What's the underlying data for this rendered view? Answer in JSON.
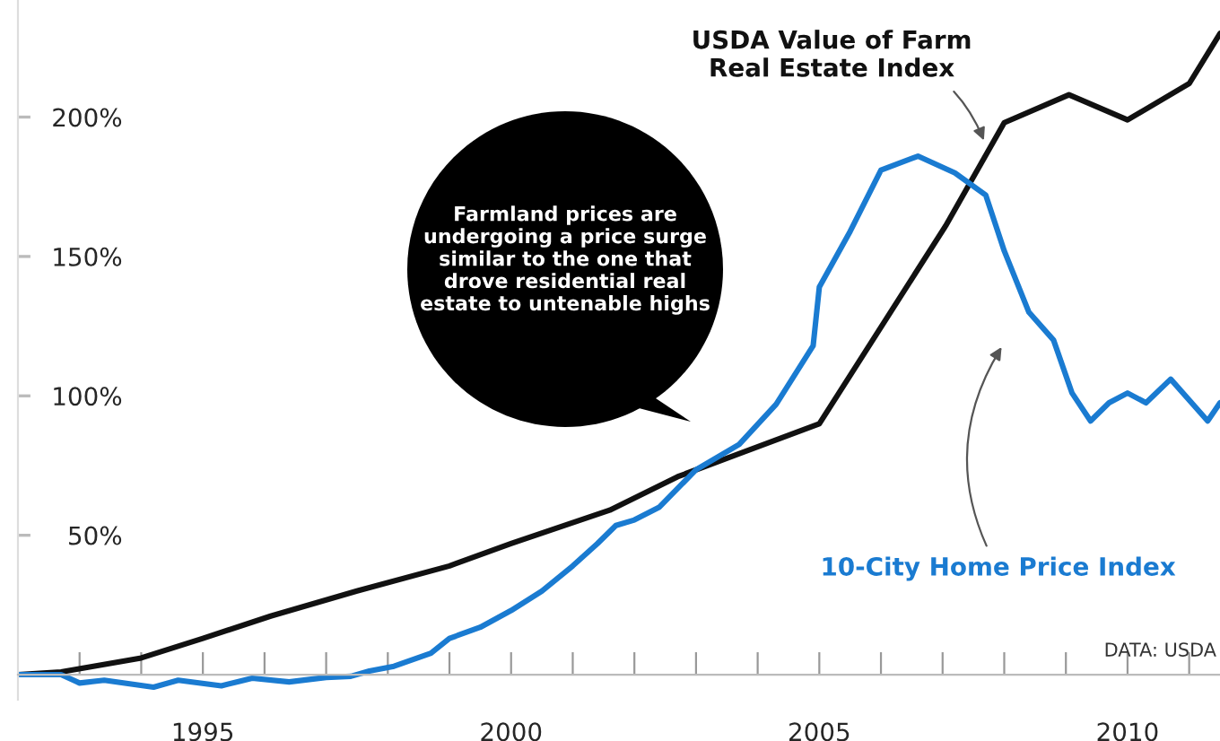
{
  "chart_data": {
    "type": "line",
    "xlim": [
      1992.0,
      2011.5
    ],
    "xticks": [
      {
        "value": 1993,
        "label": null
      },
      {
        "value": 1994,
        "label": null
      },
      1995,
      {
        "value": 1996,
        "label": null
      },
      {
        "value": 1997,
        "label": null
      },
      {
        "value": 1998,
        "label": null
      },
      {
        "value": 1999,
        "label": null
      },
      2000,
      {
        "value": 2001,
        "label": null
      },
      {
        "value": 2002,
        "label": null
      },
      {
        "value": 2003,
        "label": null
      },
      {
        "value": 2004,
        "label": null
      },
      2005,
      {
        "value": 2006,
        "label": null
      },
      {
        "value": 2007,
        "label": null
      },
      {
        "value": 2008,
        "label": null
      },
      {
        "value": 2009,
        "label": null
      },
      2010,
      {
        "value": 2011,
        "label": null
      }
    ],
    "ylim": [
      -9,
      242
    ],
    "yticks": [
      {
        "value": 50,
        "label": "50%"
      },
      {
        "value": 100,
        "label": "100%"
      },
      {
        "value": 150,
        "label": "150%"
      },
      {
        "value": 200,
        "label": "200%"
      }
    ],
    "grid": false,
    "legend": false,
    "marker": "none",
    "line_style": "solid",
    "series": [
      {
        "name": "USDA Value of Farm Real Estate Index",
        "color": "#111111",
        "x": [
          1992.0,
          1992.7,
          1994.0,
          1995.0,
          1996.1,
          1997.5,
          1999.0,
          2000.0,
          2001.6,
          2002.7,
          2005.0,
          2007.05,
          2008.0,
          2009.05,
          2010.0,
          2011.0,
          2011.5
        ],
        "values": [
          0,
          1,
          6,
          13,
          21,
          30,
          39,
          47,
          59,
          71,
          90,
          161,
          198,
          208,
          199,
          212,
          230
        ]
      },
      {
        "name": "10-City Home Price Index",
        "color": "#1a7bd1",
        "x": [
          1992.0,
          1992.7,
          1993.0,
          1993.4,
          1994.2,
          1994.6,
          1995.3,
          1995.8,
          1996.4,
          1997.0,
          1997.4,
          1997.7,
          1998.1,
          1998.7,
          1999.0,
          1999.5,
          2000.0,
          2000.5,
          2001.0,
          2001.4,
          2001.7,
          2002.0,
          2002.4,
          2003.0,
          2003.7,
          2004.3,
          2004.9,
          2005.0,
          2005.5,
          2006.0,
          2006.6,
          2007.2,
          2007.7,
          2008.0,
          2008.4,
          2008.8,
          2009.1,
          2009.4,
          2009.7,
          2010.0,
          2010.3,
          2010.7,
          2011.3,
          2011.5
        ],
        "values": [
          0,
          0,
          -3,
          -2,
          -4.5,
          -2,
          -4,
          -1.3,
          -2.6,
          -1,
          -0.6,
          1.3,
          3,
          7.7,
          13,
          17,
          23,
          30,
          39,
          47,
          53.5,
          55.5,
          60,
          73.5,
          82.6,
          97,
          118,
          139,
          159,
          181,
          186,
          180,
          172,
          152,
          130,
          120,
          101,
          91,
          97.5,
          101,
          97.5,
          106,
          91,
          97.5
        ]
      }
    ],
    "annotations": [
      "Farmland prices are undergoing a price surge similar to the one that drove residential real estate to untenable highs",
      "DATA: USDA"
    ]
  }
}
